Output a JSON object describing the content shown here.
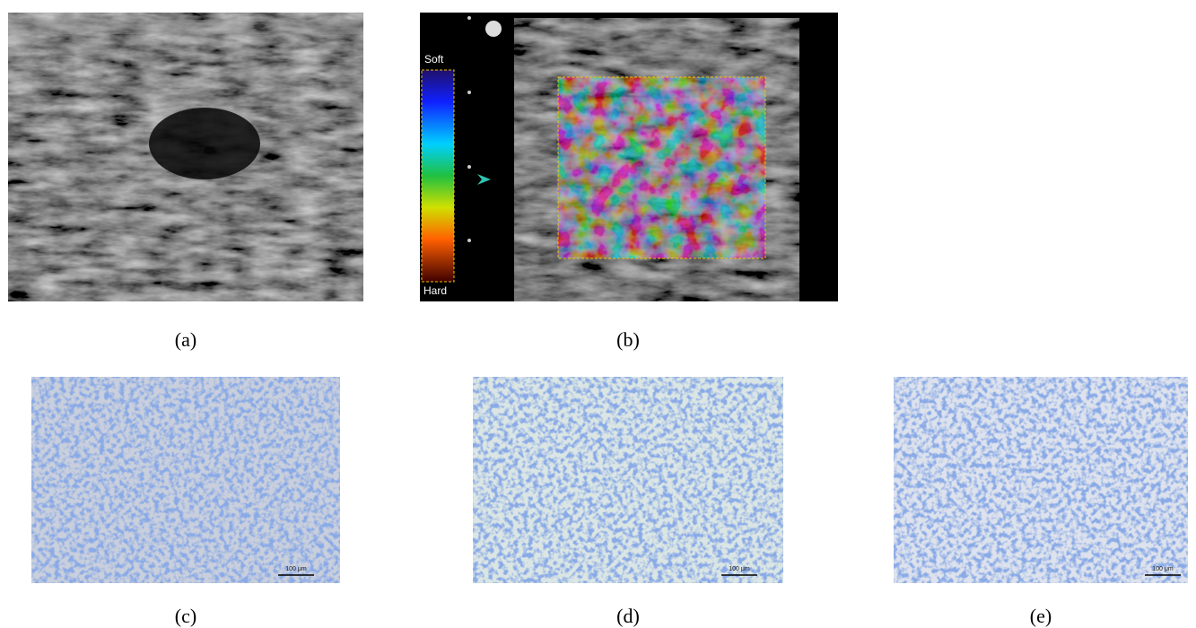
{
  "panels": [
    {
      "label": "(a)"
    },
    {
      "label": "(b)",
      "colorbar": {
        "top": "Soft",
        "bottom": "Hard"
      }
    },
    {
      "label": "(c)",
      "scale_bar": "100 μm"
    },
    {
      "label": "(d)",
      "scale_bar": "100 μm"
    },
    {
      "label": "(e)",
      "scale_bar": "100 μm"
    }
  ]
}
